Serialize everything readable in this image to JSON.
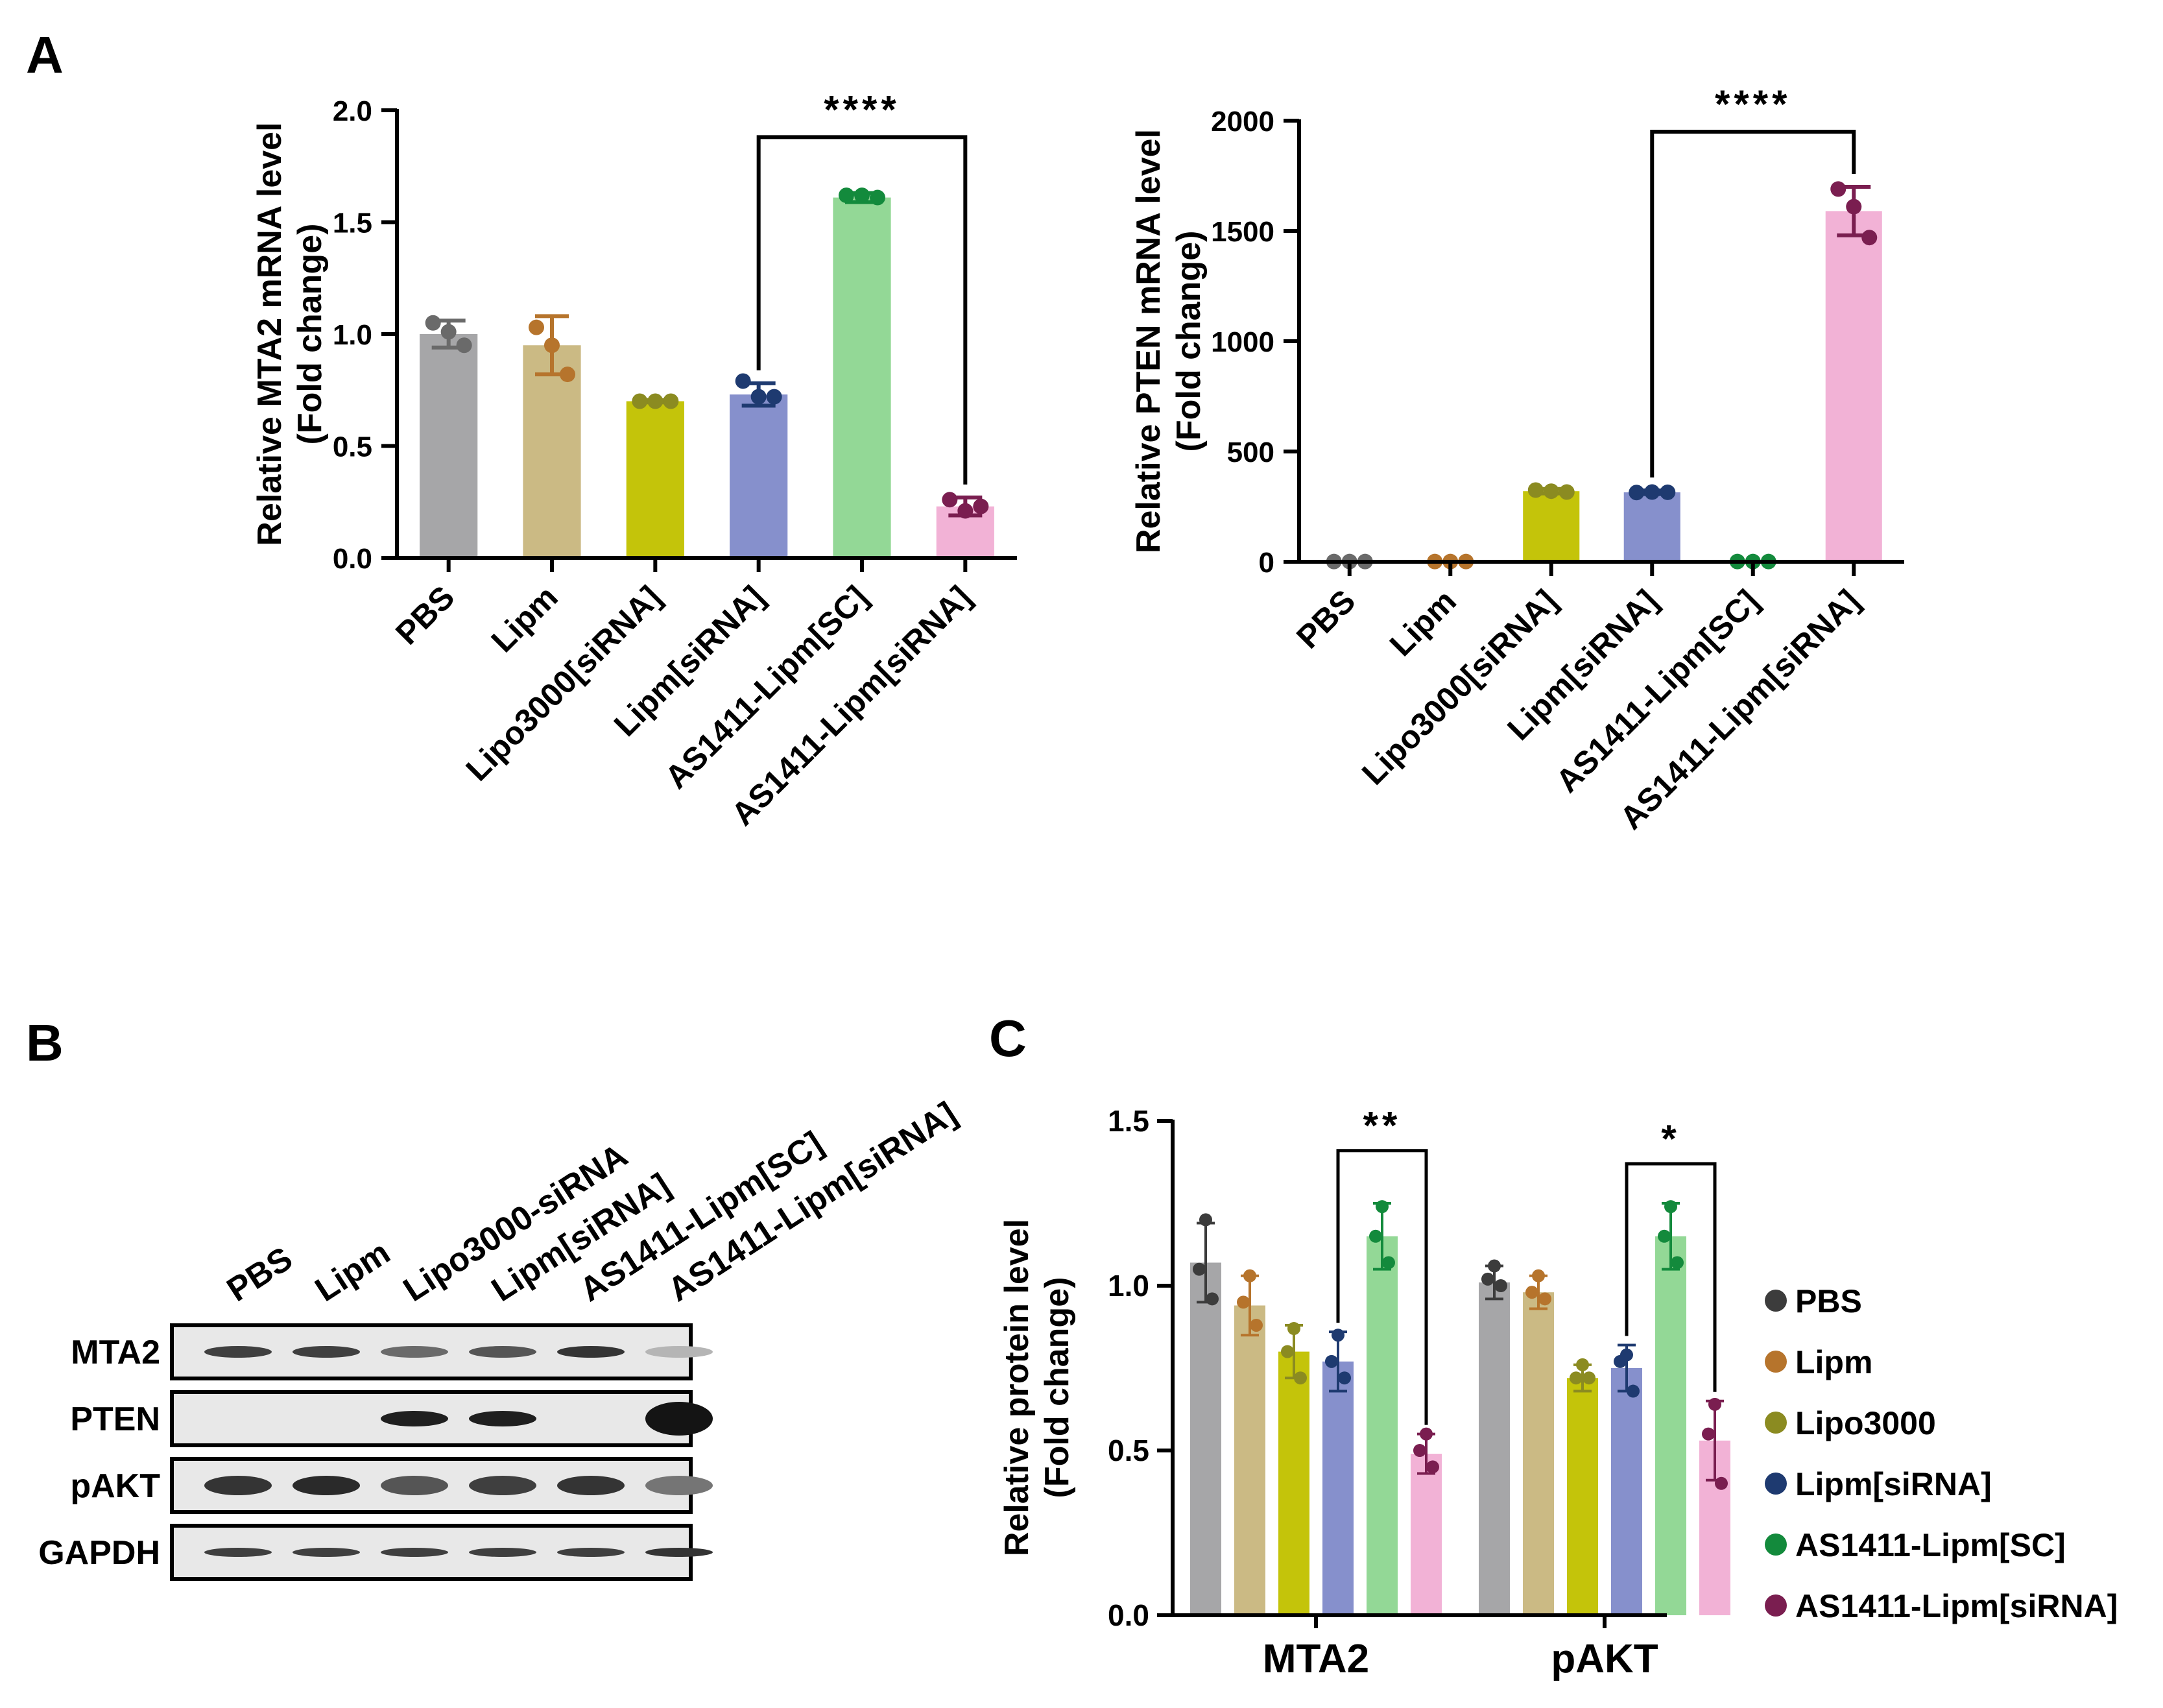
{
  "panels": {
    "a": "A",
    "b": "B",
    "c": "C"
  },
  "chart_data": [
    {
      "id": "chartA1",
      "type": "bar",
      "ylabel": [
        "Relative MTA2 mRNA level",
        "(Fold change)"
      ],
      "ylim": [
        0,
        2.0
      ],
      "yticks": [
        0.0,
        0.5,
        1.0,
        1.5,
        2.0
      ],
      "ytick_labels": [
        "0.0",
        "0.5",
        "1.0",
        "1.5",
        "2.0"
      ],
      "categories": [
        "PBS",
        "Lipm",
        "Lipo3000[siRNA]",
        "Lipm[siRNA]",
        "AS1411-Lipm[SC]",
        "AS1411-Lipm[siRNA]"
      ],
      "values": [
        1.0,
        0.95,
        0.7,
        0.73,
        1.61,
        0.23
      ],
      "errors": [
        0.06,
        0.13,
        0.005,
        0.05,
        0.02,
        0.04
      ],
      "points": [
        [
          1.05,
          1.01,
          0.95
        ],
        [
          1.03,
          0.95,
          0.82
        ],
        [
          0.7,
          0.7,
          0.7
        ],
        [
          0.79,
          0.72,
          0.72
        ],
        [
          1.62,
          1.62,
          1.61
        ],
        [
          0.26,
          0.21,
          0.23
        ]
      ],
      "bar_colors": [
        "#a6a6a8",
        "#cbba84",
        "#c4c40a",
        "#8690cc",
        "#93d896",
        "#f2b2d6"
      ],
      "dot_colors": [
        "#6a6a6a",
        "#b6742c",
        "#8b8b21",
        "#1e3a70",
        "#138a3c",
        "#7a1e50"
      ],
      "significance": {
        "from": 3,
        "to": 5,
        "y": 1.88,
        "label": "****"
      }
    },
    {
      "id": "chartA2",
      "type": "bar",
      "ylabel": [
        "Relative PTEN mRNA level",
        "(Fold change)"
      ],
      "ylim": [
        0,
        2000
      ],
      "yticks": [
        0,
        500,
        1000,
        1500,
        2000
      ],
      "ytick_labels": [
        "0",
        "500",
        "1000",
        "1500",
        "2000"
      ],
      "categories": [
        "PBS",
        "Lipm",
        "Lipo3000[siRNA]",
        "Lipm[siRNA]",
        "AS1411-Lipm[SC]",
        "AS1411-Lipm[siRNA]"
      ],
      "values": [
        1,
        1,
        320,
        315,
        1,
        1590
      ],
      "errors": [
        0,
        0,
        10,
        8,
        0,
        110
      ],
      "points": [
        [
          1,
          1,
          1
        ],
        [
          1,
          1,
          1
        ],
        [
          325,
          320,
          316
        ],
        [
          314,
          316,
          315
        ],
        [
          1,
          1,
          1
        ],
        [
          1690,
          1610,
          1470
        ]
      ],
      "bar_colors": [
        "#a6a6a8",
        "#cbba84",
        "#c4c40a",
        "#8690cc",
        "#93d896",
        "#f2b2d6"
      ],
      "dot_colors": [
        "#6a6a6a",
        "#b6742c",
        "#8b8b21",
        "#1e3a70",
        "#138a3c",
        "#7a1e50"
      ],
      "significance": {
        "from": 3,
        "to": 5,
        "y": 1950,
        "label": "****"
      }
    },
    {
      "id": "chartC",
      "type": "bar",
      "ylabel": [
        "Relative protein level",
        "(Fold change)"
      ],
      "ylim": [
        0,
        1.5
      ],
      "yticks": [
        0.0,
        0.5,
        1.0,
        1.5
      ],
      "ytick_labels": [
        "0.0",
        "0.5",
        "1.0",
        "1.5"
      ],
      "categories": [
        "MTA2",
        "pAKT"
      ],
      "series": [
        {
          "name": "PBS",
          "values": [
            1.07,
            1.01
          ],
          "errors": [
            0.12,
            0.05
          ],
          "points": [
            [
              1.2,
              1.05,
              0.96
            ],
            [
              1.06,
              1.02,
              1.0
            ]
          ]
        },
        {
          "name": "Lipm",
          "values": [
            0.94,
            0.98
          ],
          "errors": [
            0.09,
            0.05
          ],
          "points": [
            [
              1.03,
              0.95,
              0.88
            ],
            [
              1.03,
              0.98,
              0.96
            ]
          ]
        },
        {
          "name": "Lipo3000",
          "values": [
            0.8,
            0.72
          ],
          "errors": [
            0.08,
            0.04
          ],
          "points": [
            [
              0.87,
              0.8,
              0.72
            ],
            [
              0.76,
              0.72,
              0.72
            ]
          ]
        },
        {
          "name": "Lipm[siRNA]",
          "values": [
            0.77,
            0.75
          ],
          "errors": [
            0.09,
            0.07
          ],
          "points": [
            [
              0.85,
              0.77,
              0.72
            ],
            [
              0.79,
              0.77,
              0.68
            ]
          ]
        },
        {
          "name": "AS1411-Lipm[SC]",
          "values": [
            1.15,
            1.15
          ],
          "errors": [
            0.1,
            0.1
          ],
          "points": [
            [
              1.24,
              1.15,
              1.07
            ],
            [
              1.24,
              1.15,
              1.07
            ]
          ]
        },
        {
          "name": "AS1411-Lipm[siRNA]",
          "values": [
            0.49,
            0.53
          ],
          "errors": [
            0.06,
            0.12
          ],
          "points": [
            [
              0.55,
              0.5,
              0.45
            ],
            [
              0.64,
              0.55,
              0.4
            ]
          ]
        }
      ],
      "bar_colors": [
        "#a6a6a8",
        "#cbba84",
        "#c4c40a",
        "#8690cc",
        "#93d896",
        "#f2b2d6"
      ],
      "dot_colors": [
        "#3c3c3c",
        "#b6742c",
        "#8b8b21",
        "#1e3a70",
        "#138a3c",
        "#7a1e50"
      ],
      "significance": [
        {
          "group": 0,
          "from": 3,
          "to": 5,
          "y": 1.41,
          "label": "**"
        },
        {
          "group": 1,
          "from": 3,
          "to": 5,
          "y": 1.37,
          "label": "*"
        }
      ],
      "legend": [
        "PBS",
        "Lipm",
        "Lipo3000",
        "Lipm[siRNA]",
        "AS1411-Lipm[SC]",
        "AS1411-Lipm[siRNA]"
      ],
      "legend_colors": [
        "#3c3c3c",
        "#b6742c",
        "#8b8b21",
        "#1e3a70",
        "#138a3c",
        "#7a1e50"
      ]
    }
  ],
  "blot": {
    "lanes": [
      "PBS",
      "Lipm",
      "Lipo3000-siRNA",
      "Lipm[siRNA]",
      "AS1411-Lipm[SC]",
      "AS1411-Lipm[siRNA]"
    ],
    "rows": [
      "MTA2",
      "PTEN",
      "pAKT",
      "GAPDH"
    ]
  }
}
